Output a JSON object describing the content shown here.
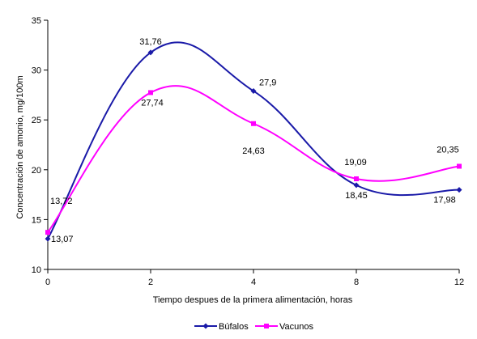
{
  "chart_data": {
    "type": "line",
    "xlabel": "Tiempo despues de la primera alimentación, horas",
    "ylabel": "Concentración de amonio, mg/100m",
    "categories": [
      "0",
      "2",
      "4",
      "8",
      "12"
    ],
    "ylim": [
      10,
      35
    ],
    "yticks": [
      "10",
      "15",
      "20",
      "25",
      "30",
      "35"
    ],
    "grid": false,
    "legend_position": "bottom",
    "series": [
      {
        "name": "Búfalos",
        "color": "#1a1aa8",
        "marker": "diamond",
        "values": [
          13.07,
          31.76,
          27.9,
          18.45,
          17.98
        ],
        "labels": [
          "13,07",
          "31,76",
          "27,9",
          "18,45",
          "17,98"
        ]
      },
      {
        "name": "Vacunos",
        "color": "#ff00ff",
        "marker": "square",
        "values": [
          13.72,
          27.74,
          24.63,
          19.09,
          20.35
        ],
        "labels": [
          "13,72",
          "27,74",
          "24,63",
          "19,09",
          "20,35"
        ]
      }
    ]
  }
}
